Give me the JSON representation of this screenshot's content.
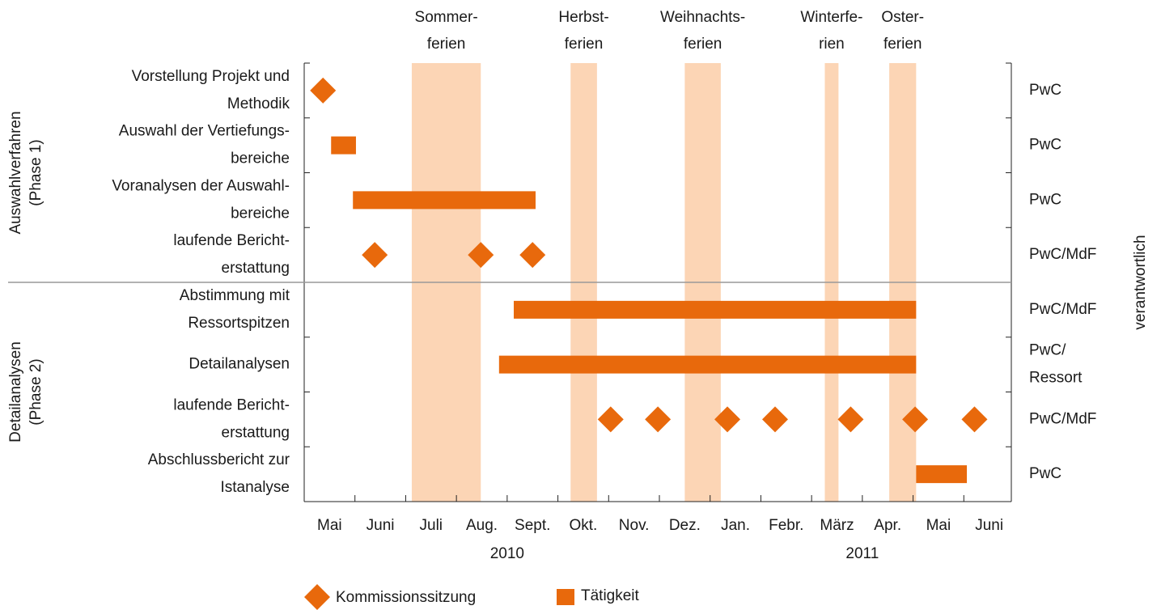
{
  "chart_data": {
    "type": "gantt",
    "color": "#e8690c",
    "band_color": "#fcd5b5",
    "categories": [
      "Mai",
      "Juni",
      "Juli",
      "Aug.",
      "Sept.",
      "Okt.",
      "Nov.",
      "Dez.",
      "Jan.",
      "Febr.",
      "März",
      "Apr.",
      "Mai",
      "Juni"
    ],
    "xlim": [
      0,
      14
    ],
    "years": [
      {
        "label": "2010",
        "x": 4
      },
      {
        "label": "2011",
        "x": 11
      }
    ],
    "holidays": [
      {
        "label": [
          "Sommer-",
          "ferien"
        ],
        "start": 2.12,
        "end": 3.48
      },
      {
        "label": [
          "Herbst-",
          "ferien"
        ],
        "start": 5.25,
        "end": 5.77
      },
      {
        "label": [
          "Weihnachts-",
          "ferien"
        ],
        "start": 7.5,
        "end": 8.21
      },
      {
        "label": [
          "Winterfe-",
          "rien"
        ],
        "start": 10.26,
        "end": 10.53
      },
      {
        "label": [
          "Oster-",
          "ferien"
        ],
        "start": 11.53,
        "end": 12.06
      }
    ],
    "groups": [
      {
        "label": [
          "Auswahlverfahren",
          "(Phase 1)"
        ],
        "rows": 4
      },
      {
        "label": [
          "Detailanalysen",
          "(Phase 2)"
        ],
        "rows": 4
      }
    ],
    "right_axis_title": "verantwortlich",
    "rows": [
      {
        "label": [
          "Vorstellung Projekt und",
          "Methodik"
        ],
        "responsible": [
          "PwC"
        ],
        "points": [
          0.37
        ]
      },
      {
        "label": [
          "Auswahl der Vertiefungs-",
          "bereiche"
        ],
        "responsible": [
          "PwC"
        ],
        "bars": [
          {
            "start": 0.53,
            "end": 1.02
          }
        ]
      },
      {
        "label": [
          "Voranalysen der Auswahl-",
          "bereiche"
        ],
        "responsible": [
          "PwC"
        ],
        "bars": [
          {
            "start": 0.96,
            "end": 4.56
          }
        ]
      },
      {
        "label": [
          "laufende Bericht-",
          "erstattung"
        ],
        "responsible": [
          "PwC/MdF"
        ],
        "points": [
          1.39,
          3.48,
          4.5
        ]
      },
      {
        "label": [
          "Abstimmung mit",
          "Ressortspitzen"
        ],
        "responsible": [
          "PwC/MdF"
        ],
        "bars": [
          {
            "start": 4.13,
            "end": 12.06
          }
        ]
      },
      {
        "label": [
          "Detailanalysen"
        ],
        "responsible": [
          "PwC/",
          "Ressort"
        ],
        "bars": [
          {
            "start": 3.84,
            "end": 12.06
          }
        ]
      },
      {
        "label": [
          "laufende Bericht-",
          "erstattung"
        ],
        "responsible": [
          "PwC/MdF"
        ],
        "points": [
          6.04,
          6.97,
          8.34,
          9.28,
          10.77,
          12.04,
          13.21
        ]
      },
      {
        "label": [
          "Abschlussbericht zur",
          "Istanalyse"
        ],
        "responsible": [
          "PwC"
        ],
        "bars": [
          {
            "start": 12.06,
            "end": 13.06
          }
        ]
      }
    ],
    "legend": {
      "point": "Kommissionssitzung",
      "bar": "Tätigkeit"
    }
  }
}
